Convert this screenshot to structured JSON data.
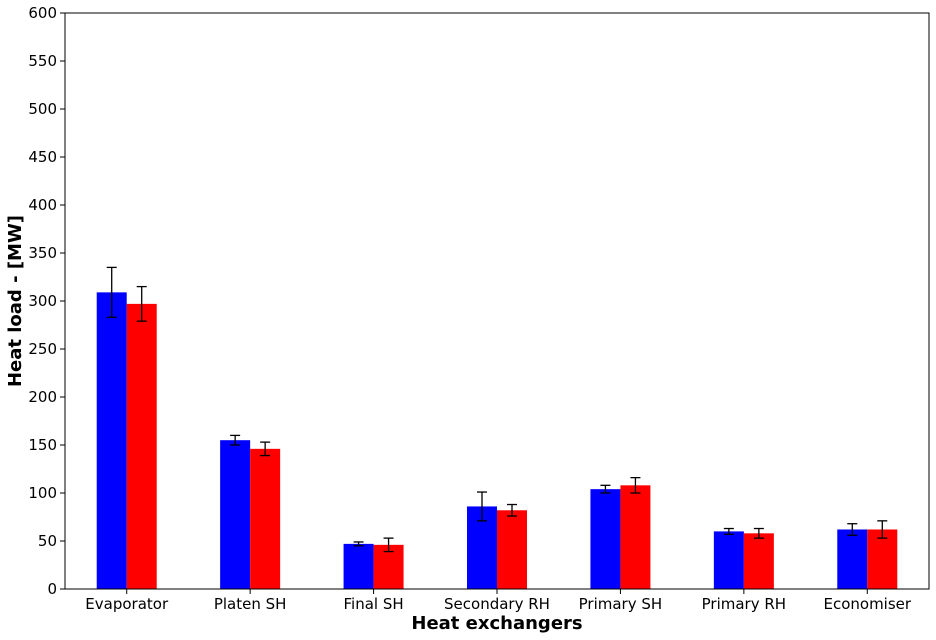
{
  "chart_data": {
    "type": "bar",
    "title": "",
    "xlabel": "Heat exchangers",
    "ylabel": "Heat load - [MW]",
    "ylim": [
      0,
      600
    ],
    "yticks": [
      0,
      50,
      100,
      150,
      200,
      250,
      300,
      350,
      400,
      450,
      500,
      550,
      600
    ],
    "grid": false,
    "categories": [
      "Evaporator",
      "Platen SH",
      "Final SH",
      "Secondary RH",
      "Primary SH",
      "Primary RH",
      "Economiser"
    ],
    "series": [
      {
        "color": "#0000ff",
        "values": [
          309,
          155,
          47,
          86,
          104,
          60,
          62
        ],
        "errors": [
          26,
          5,
          2,
          15,
          4,
          3,
          6
        ]
      },
      {
        "color": "#ff0000",
        "values": [
          297,
          146,
          46,
          82,
          108,
          58,
          62
        ],
        "errors": [
          18,
          7,
          7,
          6,
          8,
          5,
          9
        ]
      }
    ],
    "error_bar_color": "#000000"
  }
}
